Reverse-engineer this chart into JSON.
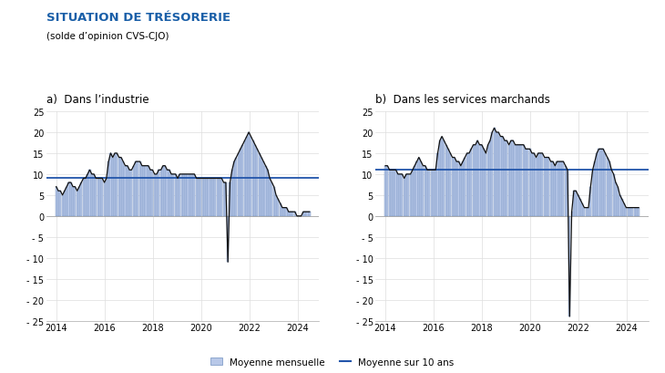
{
  "title": "SITUATION DE TRÉSORERIE",
  "subtitle": "(solde d’opinion CVS-CJO)",
  "panel_a_title": "a)  Dans l’industrie",
  "panel_b_title": "b)  Dans les services marchands",
  "mean_a": 9.0,
  "mean_b": 11.0,
  "legend_bar": "Moyenne mensuelle",
  "legend_line": "Moyenne sur 10 ans",
  "bar_color": "#b8c8e8",
  "bar_edge_color": "#7090c0",
  "mean_line_color": "#2255aa",
  "line_color": "#111111",
  "title_color": "#1a5fa8",
  "ylim": [
    -25,
    25
  ],
  "yticks": [
    -25,
    -20,
    -15,
    -10,
    -5,
    0,
    5,
    10,
    15,
    20,
    25
  ],
  "industry_data": [
    7,
    6,
    6,
    5,
    6,
    7,
    8,
    8,
    7,
    7,
    6,
    7,
    8,
    9,
    9,
    10,
    11,
    10,
    10,
    9,
    9,
    9,
    9,
    8,
    9,
    13,
    15,
    14,
    15,
    15,
    14,
    14,
    13,
    12,
    12,
    11,
    11,
    12,
    13,
    13,
    13,
    12,
    12,
    12,
    12,
    11,
    11,
    10,
    10,
    11,
    11,
    12,
    12,
    11,
    11,
    10,
    10,
    10,
    9,
    10,
    10,
    10,
    10,
    10,
    10,
    10,
    10,
    9,
    9,
    9,
    9,
    9,
    9,
    9,
    9,
    9,
    9,
    9,
    9,
    9,
    8,
    8,
    -11,
    8,
    11,
    13,
    14,
    15,
    16,
    17,
    18,
    19,
    20,
    19,
    18,
    17,
    16,
    15,
    14,
    13,
    12,
    11,
    9,
    8,
    7,
    5,
    4,
    3,
    2,
    2,
    2,
    1,
    1,
    1,
    1,
    0,
    0,
    0,
    1,
    1,
    1,
    1
  ],
  "services_data": [
    12,
    12,
    11,
    11,
    11,
    11,
    10,
    10,
    10,
    9,
    10,
    10,
    10,
    11,
    12,
    13,
    14,
    13,
    12,
    12,
    11,
    11,
    11,
    11,
    11,
    15,
    18,
    19,
    18,
    17,
    16,
    15,
    14,
    14,
    13,
    13,
    12,
    13,
    14,
    15,
    15,
    16,
    17,
    17,
    18,
    17,
    17,
    16,
    15,
    17,
    18,
    20,
    21,
    20,
    20,
    19,
    19,
    18,
    18,
    17,
    18,
    18,
    17,
    17,
    17,
    17,
    17,
    16,
    16,
    16,
    15,
    15,
    14,
    15,
    15,
    15,
    14,
    14,
    14,
    13,
    13,
    12,
    13,
    13,
    13,
    13,
    12,
    11,
    -24,
    1,
    6,
    6,
    5,
    4,
    3,
    2,
    2,
    2,
    7,
    11,
    13,
    15,
    16,
    16,
    16,
    15,
    14,
    13,
    11,
    10,
    8,
    7,
    5,
    4,
    3,
    2,
    2,
    2,
    2,
    2,
    2,
    2
  ],
  "start_year": 2014.0,
  "end_year": 2024.5
}
